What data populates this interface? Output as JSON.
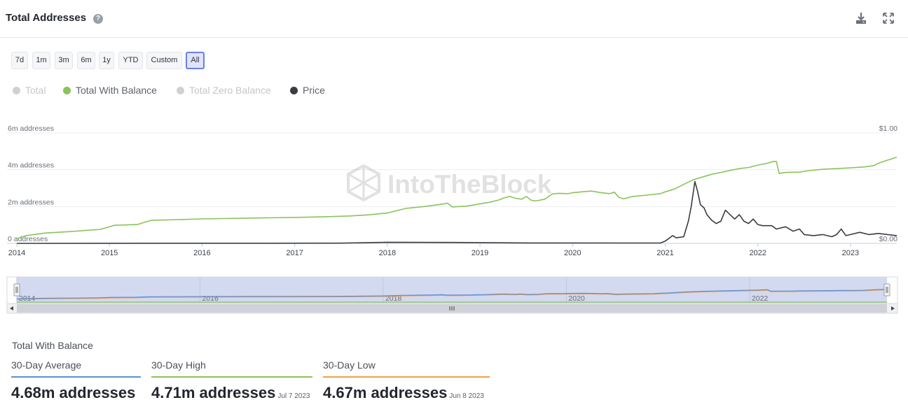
{
  "header": {
    "title": "Total Addresses",
    "help_glyph": "?",
    "icons": [
      "help-icon",
      "download-icon",
      "fullscreen-icon"
    ]
  },
  "ranges": {
    "buttons": [
      "7d",
      "1m",
      "3m",
      "6m",
      "1y",
      "YTD",
      "Custom",
      "All"
    ],
    "active": "All"
  },
  "legend": [
    {
      "label": "Total",
      "color": "#cfd1d4",
      "enabled": false
    },
    {
      "label": "Total With Balance",
      "color": "#8ac35a",
      "enabled": true
    },
    {
      "label": "Total Zero Balance",
      "color": "#cfd1d4",
      "enabled": false
    },
    {
      "label": "Price",
      "color": "#3a3c42",
      "enabled": true
    }
  ],
  "watermark": "IntoTheBlock",
  "chart_data": {
    "type": "line",
    "x_axis": {
      "ticks": [
        "2014",
        "2015",
        "2016",
        "2017",
        "2018",
        "2019",
        "2020",
        "2021",
        "2022",
        "2023"
      ],
      "range": [
        2014.0,
        2023.5
      ]
    },
    "y_axis_left": {
      "ticks": [
        "0 addresses",
        "2m addresses",
        "4m addresses",
        "6m addresses"
      ],
      "range": [
        0,
        6000000
      ]
    },
    "y_axis_right": {
      "ticks": [
        "$0.00",
        "$1.00"
      ],
      "range": [
        0,
        1.0
      ]
    },
    "grid": true,
    "legend_position": "top-left",
    "series": [
      {
        "name": "Total With Balance",
        "axis": "left",
        "color": "#8ac35a",
        "points": [
          [
            2014.0,
            250000
          ],
          [
            2014.1,
            420000
          ],
          [
            2014.3,
            560000
          ],
          [
            2014.6,
            650000
          ],
          [
            2014.9,
            760000
          ],
          [
            2015.0,
            900000
          ],
          [
            2015.05,
            980000
          ],
          [
            2015.3,
            1020000
          ],
          [
            2015.38,
            1150000
          ],
          [
            2015.45,
            1250000
          ],
          [
            2015.8,
            1300000
          ],
          [
            2016.0,
            1330000
          ],
          [
            2016.5,
            1370000
          ],
          [
            2017.0,
            1410000
          ],
          [
            2017.3,
            1440000
          ],
          [
            2017.6,
            1490000
          ],
          [
            2017.8,
            1550000
          ],
          [
            2018.0,
            1650000
          ],
          [
            2018.2,
            1900000
          ],
          [
            2018.4,
            2000000
          ],
          [
            2018.55,
            2100000
          ],
          [
            2018.65,
            2180000
          ],
          [
            2018.7,
            1980000
          ],
          [
            2018.85,
            2020000
          ],
          [
            2018.95,
            2100000
          ],
          [
            2019.0,
            2150000
          ],
          [
            2019.1,
            2230000
          ],
          [
            2019.2,
            2350000
          ],
          [
            2019.25,
            2450000
          ],
          [
            2019.32,
            2550000
          ],
          [
            2019.38,
            2450000
          ],
          [
            2019.45,
            2400000
          ],
          [
            2019.5,
            2550000
          ],
          [
            2019.55,
            2350000
          ],
          [
            2019.6,
            2300000
          ],
          [
            2019.7,
            2400000
          ],
          [
            2019.78,
            2680000
          ],
          [
            2019.85,
            2720000
          ],
          [
            2019.95,
            2700000
          ],
          [
            2020.0,
            2750000
          ],
          [
            2020.1,
            2800000
          ],
          [
            2020.2,
            2840000
          ],
          [
            2020.3,
            2760000
          ],
          [
            2020.4,
            2700000
          ],
          [
            2020.45,
            2780000
          ],
          [
            2020.5,
            2500000
          ],
          [
            2020.55,
            2420000
          ],
          [
            2020.65,
            2550000
          ],
          [
            2020.8,
            2620000
          ],
          [
            2020.95,
            2700000
          ],
          [
            2021.0,
            2800000
          ],
          [
            2021.1,
            2950000
          ],
          [
            2021.2,
            3200000
          ],
          [
            2021.3,
            3450000
          ],
          [
            2021.4,
            3600000
          ],
          [
            2021.5,
            3750000
          ],
          [
            2021.6,
            3850000
          ],
          [
            2021.7,
            3960000
          ],
          [
            2021.8,
            4060000
          ],
          [
            2021.9,
            4120000
          ],
          [
            2022.0,
            4250000
          ],
          [
            2022.1,
            4350000
          ],
          [
            2022.17,
            4450000
          ],
          [
            2022.2,
            4450000
          ],
          [
            2022.23,
            3800000
          ],
          [
            2022.3,
            3850000
          ],
          [
            2022.45,
            3870000
          ],
          [
            2022.55,
            3950000
          ],
          [
            2022.7,
            4020000
          ],
          [
            2022.85,
            4060000
          ],
          [
            2023.0,
            4100000
          ],
          [
            2023.15,
            4150000
          ],
          [
            2023.25,
            4220000
          ],
          [
            2023.3,
            4350000
          ],
          [
            2023.4,
            4520000
          ],
          [
            2023.5,
            4680000
          ]
        ]
      },
      {
        "name": "Price",
        "axis": "right",
        "color": "#3a3c42",
        "points": [
          [
            2014.0,
            0.0
          ],
          [
            2017.5,
            0.002
          ],
          [
            2018.0,
            0.01
          ],
          [
            2018.7,
            0.008
          ],
          [
            2019.5,
            0.004
          ],
          [
            2020.5,
            0.003
          ],
          [
            2020.95,
            0.004
          ],
          [
            2021.0,
            0.02
          ],
          [
            2021.08,
            0.07
          ],
          [
            2021.12,
            0.05
          ],
          [
            2021.2,
            0.06
          ],
          [
            2021.25,
            0.2
          ],
          [
            2021.28,
            0.33
          ],
          [
            2021.32,
            0.56
          ],
          [
            2021.35,
            0.47
          ],
          [
            2021.38,
            0.35
          ],
          [
            2021.42,
            0.32
          ],
          [
            2021.45,
            0.26
          ],
          [
            2021.5,
            0.21
          ],
          [
            2021.55,
            0.18
          ],
          [
            2021.6,
            0.2
          ],
          [
            2021.65,
            0.3
          ],
          [
            2021.7,
            0.26
          ],
          [
            2021.75,
            0.22
          ],
          [
            2021.8,
            0.26
          ],
          [
            2021.85,
            0.2
          ],
          [
            2021.9,
            0.18
          ],
          [
            2021.95,
            0.22
          ],
          [
            2022.0,
            0.17
          ],
          [
            2022.05,
            0.16
          ],
          [
            2022.15,
            0.16
          ],
          [
            2022.2,
            0.13
          ],
          [
            2022.3,
            0.15
          ],
          [
            2022.38,
            0.11
          ],
          [
            2022.45,
            0.13
          ],
          [
            2022.5,
            0.08
          ],
          [
            2022.6,
            0.07
          ],
          [
            2022.7,
            0.08
          ],
          [
            2022.8,
            0.06
          ],
          [
            2022.85,
            0.08
          ],
          [
            2022.9,
            0.13
          ],
          [
            2022.95,
            0.07
          ],
          [
            2023.0,
            0.08
          ],
          [
            2023.1,
            0.1
          ],
          [
            2023.2,
            0.08
          ],
          [
            2023.3,
            0.09
          ],
          [
            2023.4,
            0.08
          ],
          [
            2023.5,
            0.07
          ]
        ]
      }
    ],
    "navigator": {
      "ticks": [
        "2014",
        "2016",
        "2018",
        "2020",
        "2022"
      ]
    }
  },
  "stats": {
    "title": "Total With Balance",
    "items": [
      {
        "label": "30-Day Average",
        "value": "4.68m addresses",
        "date": "",
        "color": "#5b8fd8"
      },
      {
        "label": "30-Day High",
        "value": "4.71m addresses",
        "date": "Jul 7 2023",
        "color": "#8ac35a"
      },
      {
        "label": "30-Day Low",
        "value": "4.67m addresses",
        "date": "Jun 8 2023",
        "color": "#f0a14a"
      }
    ]
  }
}
